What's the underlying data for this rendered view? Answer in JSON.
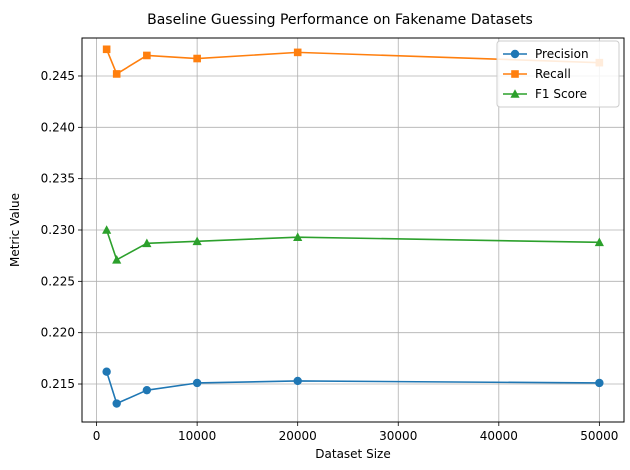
{
  "chart_data": {
    "type": "line",
    "title": "Baseline Guessing Performance on Fakename Datasets",
    "xlabel": "Dataset Size",
    "ylabel": "Metric Value",
    "xlim": [
      -1450,
      52450
    ],
    "ylim": [
      0.2113,
      0.2487
    ],
    "xticks": [
      0,
      10000,
      20000,
      30000,
      40000,
      50000
    ],
    "yticks": [
      0.215,
      0.22,
      0.225,
      0.23,
      0.235,
      0.24,
      0.245
    ],
    "grid": true,
    "legend_position": "top-right",
    "x": [
      1000,
      2000,
      5000,
      10000,
      20000,
      50000
    ],
    "series": [
      {
        "name": "Precision",
        "color": "#1f77b4",
        "marker": "circle",
        "values": [
          0.2162,
          0.2131,
          0.2144,
          0.2151,
          0.2153,
          0.2151
        ]
      },
      {
        "name": "Recall",
        "color": "#ff7f0e",
        "marker": "square",
        "values": [
          0.2476,
          0.2452,
          0.247,
          0.2467,
          0.2473,
          0.2463
        ]
      },
      {
        "name": "F1 Score",
        "color": "#2ca02c",
        "marker": "triangle",
        "values": [
          0.23,
          0.2271,
          0.2287,
          0.2289,
          0.2293,
          0.2288
        ]
      }
    ]
  }
}
